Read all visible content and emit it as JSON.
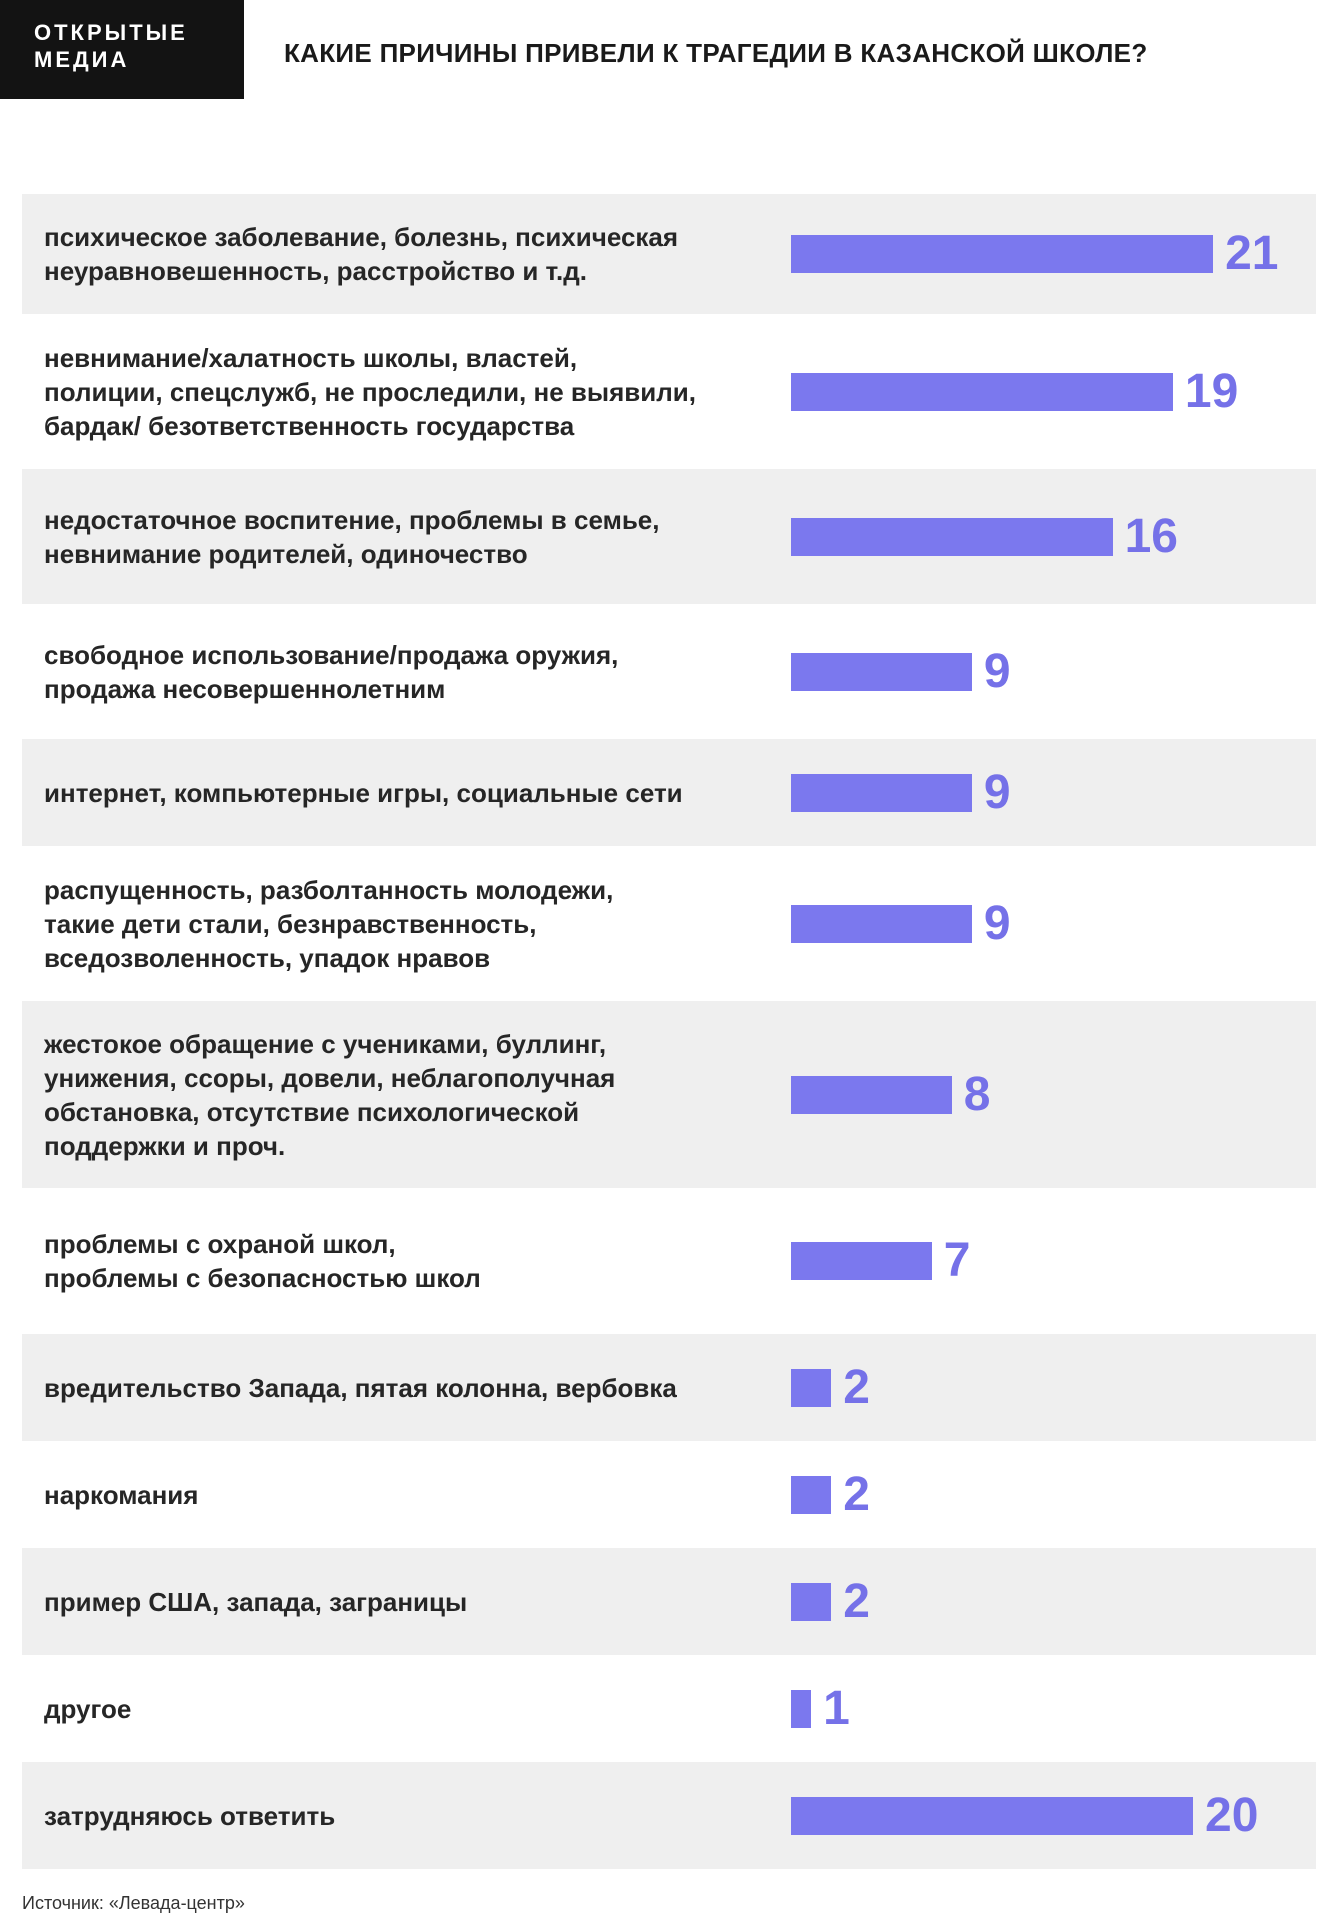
{
  "brand": {
    "line1": "ОТКРЫТЫЕ",
    "line2": "МЕДИА"
  },
  "title": "КАКИЕ ПРИЧИНЫ ПРИВЕЛИ К ТРАГЕДИИ В КАЗАНСКОЙ ШКОЛЕ?",
  "source": "Источник: «Левада-центр»",
  "colors": {
    "bar": "#7b78ee",
    "value_text": "#7571e8",
    "stripe": "#efefef",
    "logo_bg": "#131313"
  },
  "chart_data": {
    "type": "bar",
    "orientation": "horizontal",
    "title": "КАКИЕ ПРИЧИНЫ ПРИВЕЛИ К ТРАГЕДИИ В КАЗАНСКОЙ ШКОЛЕ?",
    "xlabel": "",
    "ylabel": "",
    "grid": false,
    "categories": [
      "психическое заболевание, болезнь, психическая\nнеуравновешенность, расстройство и т.д.",
      "невнимание/халатность школы, властей,\nполиции, спецслужб, не проследили, не выявили,\nбардак/ безответственность государства",
      "недостаточное воспитение, проблемы в семье,\nневнимание родителей, одиночество",
      "свободное использование/продажа оружия,\nпродажа несовершеннолетним",
      "интернет, компьютерные игры, социальные сети",
      "распущенность, разболтанность молодежи,\nтакие дети стали, безнравственность,\nвседозволенность, упадок нравов",
      "жестокое обращение с учениками, буллинг,\nунижения, ссоры, довели, неблагополучная\nобстановка, отсутствие психологической\nподдержки и проч.",
      "проблемы с охраной школ,\nпроблемы с безопасностью школ",
      "вредительство Запада, пятая колонна, вербовка",
      "наркомания",
      "пример США, запада, заграницы",
      "другое",
      "затрудняюсь ответить"
    ],
    "values": [
      21,
      19,
      16,
      9,
      9,
      9,
      8,
      7,
      2,
      2,
      2,
      1,
      20
    ],
    "xlim": [
      0,
      21
    ]
  }
}
